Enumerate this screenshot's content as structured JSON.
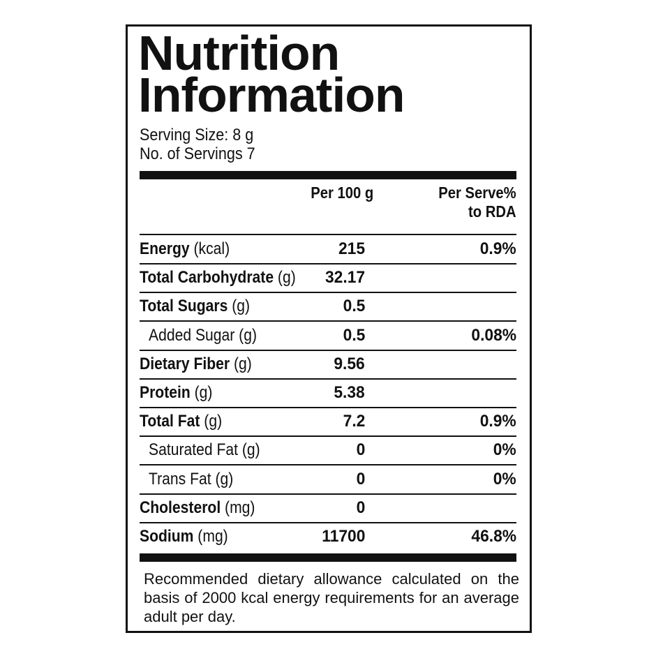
{
  "header": {
    "title_line1": "Nutrition",
    "title_line2": "Information",
    "serving_size": "Serving Size: 8 g",
    "servings": "No. of Servings 7"
  },
  "table": {
    "columns": {
      "per_100g": "Per 100 g",
      "per_serve_line1": "Per Serve%",
      "per_serve_line2": "to RDA"
    },
    "rows": [
      {
        "name": "Energy",
        "unit": "(kcal)",
        "per_100g": "215",
        "per_serve": "0.9%"
      },
      {
        "name": "Total Carbohydrate",
        "unit": "(g)",
        "per_100g": "32.17"
      },
      {
        "name": "Total Sugars",
        "unit": "(g)",
        "per_100g": "0.5"
      },
      {
        "sub_name": "Added Sugar (g)",
        "per_100g": "0.5",
        "per_serve": "0.08%"
      },
      {
        "name": "Dietary Fiber",
        "unit": "(g)",
        "per_100g": "9.56"
      },
      {
        "name": "Protein",
        "unit": "(g)",
        "per_100g": "5.38"
      },
      {
        "name": "Total Fat",
        "unit": "(g)",
        "per_100g": "7.2",
        "per_serve": "0.9%"
      },
      {
        "sub_name": "Saturated Fat (g)",
        "per_100g": "0",
        "per_serve": "0%"
      },
      {
        "sub_name": "Trans Fat (g)",
        "per_100g": "0",
        "per_serve": "0%"
      },
      {
        "name": "Cholesterol",
        "unit": "(mg)",
        "per_100g": "0"
      },
      {
        "name": "Sodium",
        "unit": "(mg)",
        "per_100g": "11700",
        "per_serve": "46.8%"
      }
    ]
  },
  "footer": "Recommended dietary allowance calculated on the basis of 2000 kcal energy requirements for an average adult per day."
}
